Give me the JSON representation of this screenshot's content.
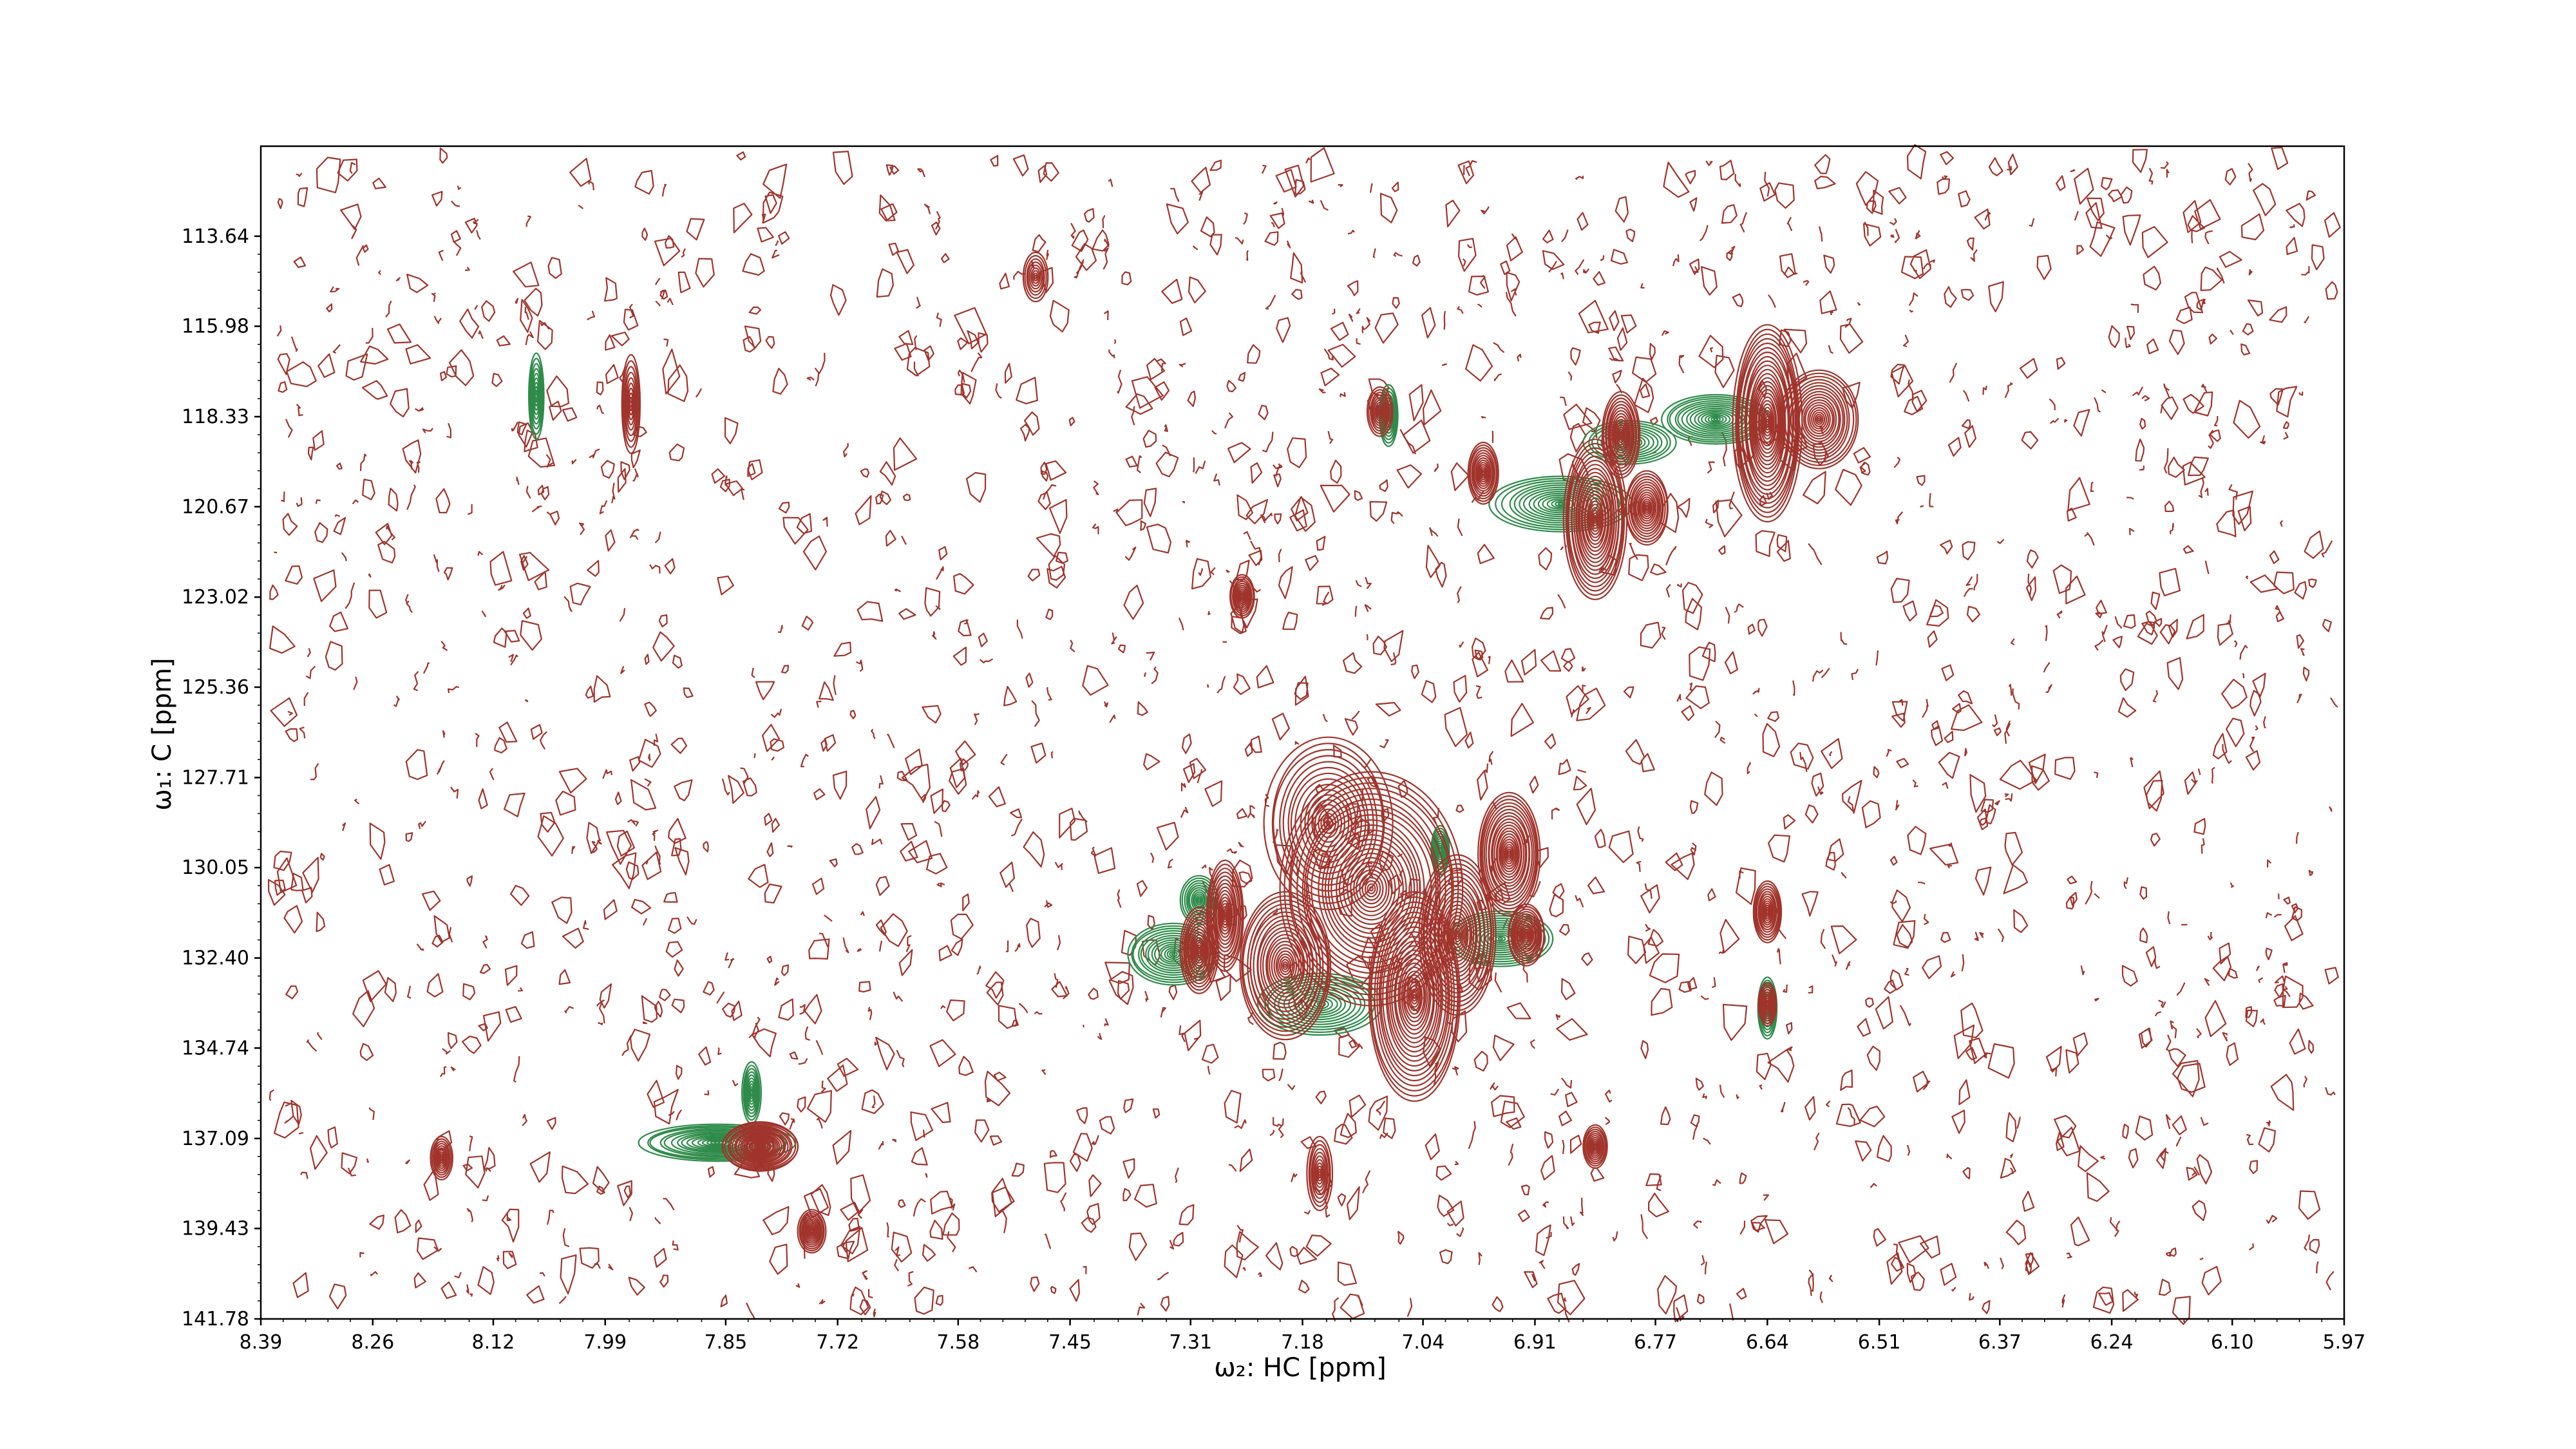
{
  "chart_data": {
    "type": "contour",
    "xlabel": "ω₂: HC [ppm]",
    "ylabel": "ω₁: C [ppm]",
    "x_axis_reversed": true,
    "y_axis_reversed": true,
    "xlim": [
      8.39,
      5.97
    ],
    "ylim": [
      111.3,
      141.78
    ],
    "xticks": [
      "8.39",
      "8.26",
      "8.12",
      "7.99",
      "7.85",
      "7.72",
      "7.58",
      "7.45",
      "7.31",
      "7.18",
      "7.04",
      "6.91",
      "6.77",
      "6.64",
      "6.51",
      "6.37",
      "6.24",
      "6.10",
      "5.97"
    ],
    "yticks": [
      "113.64",
      "115.98",
      "118.33",
      "120.67",
      "123.02",
      "125.36",
      "127.71",
      "130.05",
      "132.40",
      "134.74",
      "137.09",
      "139.43",
      "141.78"
    ],
    "grid": false,
    "colors": {
      "positive": "#a0342c",
      "negative": "#2e8b4a",
      "frame": "#000000"
    },
    "series": [
      {
        "sign": "positive",
        "peaks": [
          {
            "x": 6.64,
            "y": 118.5,
            "sx": 0.022,
            "sy": 1.6,
            "h": 1.0
          },
          {
            "x": 6.58,
            "y": 118.4,
            "sx": 0.025,
            "sy": 0.8,
            "h": 0.7
          },
          {
            "x": 6.81,
            "y": 118.8,
            "sx": 0.012,
            "sy": 0.7,
            "h": 0.55
          },
          {
            "x": 6.84,
            "y": 121.0,
            "sx": 0.02,
            "sy": 1.3,
            "h": 0.85
          },
          {
            "x": 6.78,
            "y": 120.7,
            "sx": 0.014,
            "sy": 0.6,
            "h": 0.55
          },
          {
            "x": 6.97,
            "y": 119.8,
            "sx": 0.01,
            "sy": 0.5,
            "h": 0.45
          },
          {
            "x": 7.25,
            "y": 123.0,
            "sx": 0.008,
            "sy": 0.35,
            "h": 0.35
          },
          {
            "x": 7.09,
            "y": 118.2,
            "sx": 0.008,
            "sy": 0.4,
            "h": 0.3
          },
          {
            "x": 7.1,
            "y": 130.6,
            "sx": 0.06,
            "sy": 1.9,
            "h": 1.0
          },
          {
            "x": 7.05,
            "y": 133.4,
            "sx": 0.03,
            "sy": 1.7,
            "h": 0.95
          },
          {
            "x": 6.94,
            "y": 129.7,
            "sx": 0.02,
            "sy": 1.0,
            "h": 0.8
          },
          {
            "x": 7.0,
            "y": 131.8,
            "sx": 0.025,
            "sy": 1.3,
            "h": 0.8
          },
          {
            "x": 7.2,
            "y": 132.6,
            "sx": 0.03,
            "sy": 1.2,
            "h": 0.8
          },
          {
            "x": 7.27,
            "y": 131.3,
            "sx": 0.012,
            "sy": 0.9,
            "h": 0.6
          },
          {
            "x": 7.3,
            "y": 132.2,
            "sx": 0.012,
            "sy": 0.7,
            "h": 0.55
          },
          {
            "x": 6.92,
            "y": 131.8,
            "sx": 0.012,
            "sy": 0.5,
            "h": 0.5
          },
          {
            "x": 7.15,
            "y": 128.9,
            "sx": 0.04,
            "sy": 1.4,
            "h": 0.6
          },
          {
            "x": 6.64,
            "y": 131.2,
            "sx": 0.009,
            "sy": 0.5,
            "h": 0.45
          },
          {
            "x": 6.64,
            "y": 133.6,
            "sx": 0.006,
            "sy": 0.35,
            "h": 0.3
          },
          {
            "x": 7.81,
            "y": 137.3,
            "sx": 0.025,
            "sy": 0.4,
            "h": 0.8
          },
          {
            "x": 7.75,
            "y": 139.5,
            "sx": 0.009,
            "sy": 0.35,
            "h": 0.4
          },
          {
            "x": 8.18,
            "y": 137.6,
            "sx": 0.007,
            "sy": 0.35,
            "h": 0.3
          },
          {
            "x": 6.84,
            "y": 137.3,
            "sx": 0.008,
            "sy": 0.35,
            "h": 0.35
          },
          {
            "x": 7.16,
            "y": 138.0,
            "sx": 0.008,
            "sy": 0.6,
            "h": 0.3
          },
          {
            "x": 7.96,
            "y": 118.0,
            "sx": 0.006,
            "sy": 0.8,
            "h": 0.25
          },
          {
            "x": 7.49,
            "y": 114.7,
            "sx": 0.008,
            "sy": 0.4,
            "h": 0.22
          }
        ]
      },
      {
        "sign": "negative",
        "peaks": [
          {
            "x": 6.88,
            "y": 120.6,
            "sx": 0.045,
            "sy": 0.45,
            "h": 0.5
          },
          {
            "x": 6.7,
            "y": 118.4,
            "sx": 0.035,
            "sy": 0.4,
            "h": 0.5
          },
          {
            "x": 6.8,
            "y": 119.0,
            "sx": 0.03,
            "sy": 0.35,
            "h": 0.35
          },
          {
            "x": 7.08,
            "y": 118.3,
            "sx": 0.006,
            "sy": 0.5,
            "h": 0.3
          },
          {
            "x": 7.33,
            "y": 132.3,
            "sx": 0.03,
            "sy": 0.5,
            "h": 0.5
          },
          {
            "x": 7.16,
            "y": 133.6,
            "sx": 0.04,
            "sy": 0.5,
            "h": 0.45
          },
          {
            "x": 6.95,
            "y": 131.9,
            "sx": 0.035,
            "sy": 0.45,
            "h": 0.45
          },
          {
            "x": 7.3,
            "y": 130.9,
            "sx": 0.012,
            "sy": 0.4,
            "h": 0.35
          },
          {
            "x": 7.02,
            "y": 129.6,
            "sx": 0.006,
            "sy": 0.4,
            "h": 0.3
          },
          {
            "x": 6.64,
            "y": 133.7,
            "sx": 0.006,
            "sy": 0.5,
            "h": 0.35
          },
          {
            "x": 7.86,
            "y": 137.2,
            "sx": 0.05,
            "sy": 0.3,
            "h": 0.5
          },
          {
            "x": 7.82,
            "y": 135.9,
            "sx": 0.006,
            "sy": 0.5,
            "h": 0.3
          },
          {
            "x": 8.07,
            "y": 117.8,
            "sx": 0.005,
            "sy": 0.7,
            "h": 0.25
          }
        ]
      }
    ],
    "noise": {
      "color": "positive",
      "density": "dense",
      "level": "lowest contour"
    }
  }
}
